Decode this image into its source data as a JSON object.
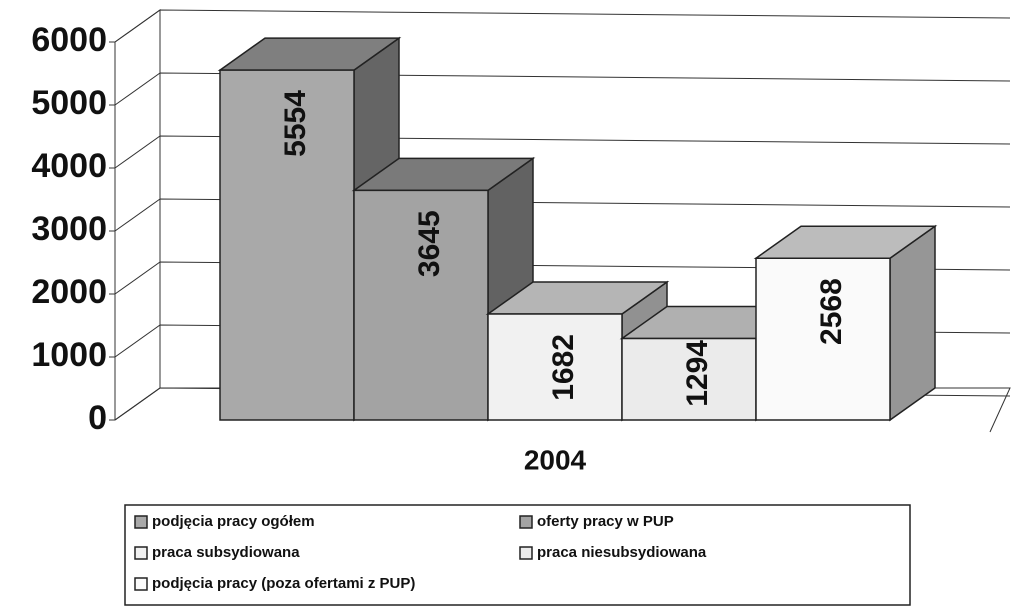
{
  "chart_data": {
    "type": "bar3d",
    "categories": [
      "2004"
    ],
    "series": [
      {
        "name": "podjęcia pracy ogółem",
        "color": "#a9a9a9",
        "values": [
          5554
        ]
      },
      {
        "name": "oferty pracy w PUP",
        "color": "#a3a3a3",
        "values": [
          3645
        ]
      },
      {
        "name": "praca subsydiowana",
        "color": "#f1f1f1",
        "values": [
          1682
        ]
      },
      {
        "name": "praca niesubsydiowana",
        "color": "#ebebeb",
        "values": [
          1294
        ]
      },
      {
        "name": "podjęcia pracy (poza ofertami z PUP)",
        "color": "#fafafa",
        "values": [
          2568
        ]
      }
    ],
    "ylim": [
      0,
      6000
    ],
    "yticks": [
      0,
      1000,
      2000,
      3000,
      4000,
      5000,
      6000
    ],
    "grid": true,
    "legend": "bottom"
  }
}
